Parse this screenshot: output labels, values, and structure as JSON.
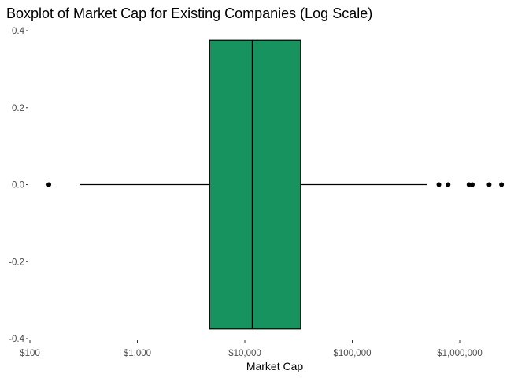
{
  "chart_data": {
    "type": "boxplot",
    "title": "Boxplot of Market Cap for Existing Companies (Log Scale)",
    "xlabel": "Market Cap",
    "ylabel": "",
    "x_scale": "log10",
    "x_ticks": [
      {
        "value": 100,
        "label": "$100"
      },
      {
        "value": 1000,
        "label": "$1,000"
      },
      {
        "value": 10000,
        "label": "$10,000"
      },
      {
        "value": 100000,
        "label": "$100,000"
      },
      {
        "value": 1000000,
        "label": "$1,000,000"
      }
    ],
    "y_ticks": [
      {
        "value": 0.4,
        "label": "0.4"
      },
      {
        "value": 0.2,
        "label": "0.2"
      },
      {
        "value": 0.0,
        "label": "0.0"
      },
      {
        "value": -0.2,
        "label": "-0.2"
      },
      {
        "value": -0.4,
        "label": "-0.4"
      }
    ],
    "xlim": [
      100,
      2500000
    ],
    "ylim": [
      -0.4,
      0.4
    ],
    "box": {
      "whisker_low": 290,
      "q1": 4700,
      "median": 11800,
      "q3": 33000,
      "whisker_high": 500000,
      "y_low": -0.375,
      "y_high": 0.375,
      "fill_color": "#17935f"
    },
    "outliers": [
      150,
      640000,
      780000,
      1220000,
      1310000,
      1880000,
      2450000
    ],
    "grid": false
  }
}
